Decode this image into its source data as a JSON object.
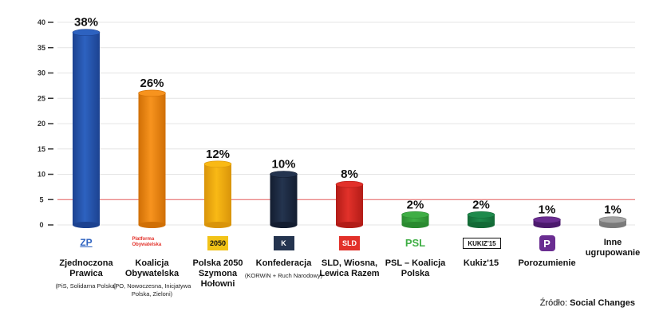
{
  "chart_data": {
    "type": "bar",
    "ylim": [
      0,
      40
    ],
    "yticks": [
      0,
      5,
      10,
      15,
      20,
      25,
      30,
      35,
      40
    ],
    "threshold": 5,
    "bars": [
      {
        "name": "Zjednoczona Prawica",
        "sub": "(PiS, Solidarna Polska)",
        "value": 38,
        "label": "38%",
        "color": "#2d62c0",
        "dark": "#1c4290",
        "logo": "ZP"
      },
      {
        "name": "Koalicja Obywatelska",
        "sub": "(PO, Nowoczesna, Inicjatywa Polska, Zieloni)",
        "value": 26,
        "label": "26%",
        "color": "#f7931e",
        "dark": "#d06f05",
        "logo": "Platforma Obywatelska"
      },
      {
        "name": "Polska 2050 Szymona Hołowni",
        "sub": "",
        "value": 12,
        "label": "12%",
        "color": "#f9b915",
        "dark": "#d9940a",
        "logo": "2050"
      },
      {
        "name": "Konfederacja",
        "sub": "(KORWiN + Ruch Narodowy)",
        "value": 10,
        "label": "10%",
        "color": "#24344f",
        "dark": "#131d30",
        "logo": "K"
      },
      {
        "name": "SLD, Wiosna, Lewica Razem",
        "sub": "",
        "value": 8,
        "label": "8%",
        "color": "#e2312a",
        "dark": "#b21c17",
        "logo": "SLD"
      },
      {
        "name": "PSL – Koalicja Polska",
        "sub": "",
        "value": 2,
        "label": "2%",
        "color": "#3fae45",
        "dark": "#2a8a30",
        "logo": "PSL"
      },
      {
        "name": "Kukiz'15",
        "sub": "",
        "value": 2,
        "label": "2%",
        "color": "#1f8a4c",
        "dark": "#136a36",
        "logo": "KUKIZ'15"
      },
      {
        "name": "Porozumienie",
        "sub": "",
        "value": 1,
        "label": "1%",
        "color": "#6a2d91",
        "dark": "#4c1a6d",
        "logo": "P"
      },
      {
        "name": "Inne ugrupowanie",
        "sub": "",
        "value": 1,
        "label": "1%",
        "color": "#a3a3a3",
        "dark": "#7a7a7a",
        "logo": ""
      }
    ]
  },
  "source": {
    "prefix": "Źródło:",
    "name": "Social Changes"
  }
}
